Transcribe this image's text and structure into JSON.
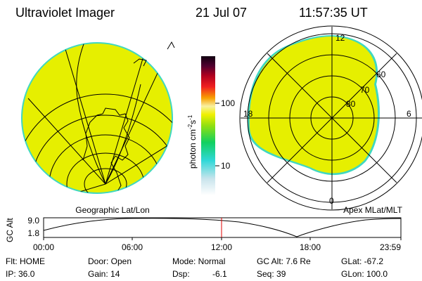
{
  "header": {
    "title": "Ultraviolet Imager",
    "date": "21 Jul 07",
    "time": "11:57:35 UT"
  },
  "colorbar": {
    "ticks": [
      "100",
      "10"
    ],
    "unit": [
      "photon cm",
      "-2",
      "s",
      "-1"
    ]
  },
  "left_panel": {
    "label": "Geographic Lat/Lon"
  },
  "right_panel": {
    "label": "Apex MLat/MLT",
    "mlt_labels": [
      "12",
      "18",
      "6",
      "0"
    ],
    "lat_labels": [
      "60",
      "70",
      "80"
    ]
  },
  "altitude_plot": {
    "axis_label": "GC Alt",
    "y_labels": [
      "9.0",
      "1.8"
    ],
    "time_labels": [
      "00:00",
      "06:00",
      "12:00",
      "18:00",
      "23:59"
    ]
  },
  "status": {
    "rows": [
      [
        "Flt: HOME",
        "Door: Open",
        "Mode: Normal",
        "GC Alt: 7.6 Re",
        "GLat: -67.2"
      ],
      [
        "IP: 36.0",
        "Gain: 14",
        "Dsp:",
        "Seq: 39",
        "GLon: 100.0"
      ]
    ],
    "dsp_value": "-6.1"
  }
}
